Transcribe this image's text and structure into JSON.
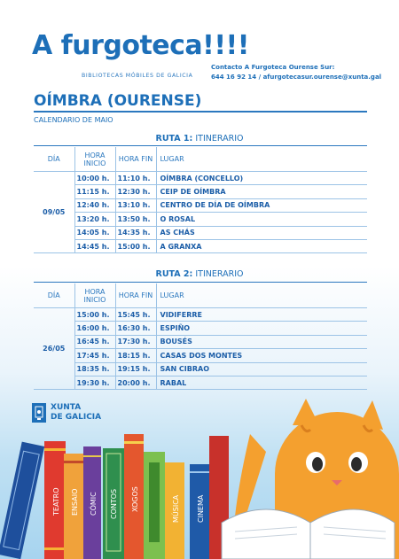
{
  "header": {
    "title": "A furgoteca!!!!",
    "subtitle": "BIBLIOTECAS MÓBILES DE GALICIA",
    "contact_line1": "Contacto A Furgoteca Ourense Sur:",
    "contact_line2": "644 16 92 14 / afurgotecasur.ourense@xunta.gal"
  },
  "place_title": "OÍMBRA (OURENSE)",
  "calendar_label": "CALENDARIO DE MAIO",
  "routes": [
    {
      "route_bold": "RUTA 1:",
      "route_rest": " ITINERARIO",
      "columns": [
        "DÍA",
        "HORA INICIO",
        "HORA FIN",
        "LUGAR"
      ],
      "day": "09/05",
      "rows": [
        {
          "start": "10:00 h.",
          "end": "11:10 h.",
          "place": "OÍMBRA (CONCELLO)"
        },
        {
          "start": "11:15 h.",
          "end": "12:30 h.",
          "place": "CEIP DE OÍMBRA"
        },
        {
          "start": "12:40 h.",
          "end": "13:10 h.",
          "place": "CENTRO DE DÍA DE OÍMBRA"
        },
        {
          "start": "13:20 h.",
          "end": "13:50 h.",
          "place": "O ROSAL"
        },
        {
          "start": "14:05 h.",
          "end": "14:35 h.",
          "place": "AS CHÁS"
        },
        {
          "start": "14:45 h.",
          "end": "15:00 h.",
          "place": "A GRANXA"
        }
      ]
    },
    {
      "route_bold": "RUTA 2:",
      "route_rest": " ITINERARIO",
      "columns": [
        "DÍA",
        "HORA INICIO",
        "HORA FIN",
        "LUGAR"
      ],
      "day": "26/05",
      "rows": [
        {
          "start": "15:00 h.",
          "end": "15:45 h.",
          "place": "VIDIFERRE"
        },
        {
          "start": "16:00 h.",
          "end": "16:30 h.",
          "place": "ESPIÑO"
        },
        {
          "start": "16:45 h.",
          "end": "17:30 h.",
          "place": "BOUSÉS"
        },
        {
          "start": "17:45 h.",
          "end": "18:15 h.",
          "place": "CASAS DOS MONTES"
        },
        {
          "start": "18:35 h.",
          "end": "19:15 h.",
          "place": "SAN CIBRAO"
        },
        {
          "start": "19:30 h.",
          "end": "20:00 h.",
          "place": "RABAL"
        }
      ]
    }
  ],
  "footer": {
    "org_line1": "XUNTA",
    "org_line2": "DE GALICIA"
  },
  "books": [
    "TEATRO",
    "ENSAIO",
    "CÓMIC",
    "CONTOS",
    "XOGOS",
    "MÚSICA",
    "CINEMA"
  ]
}
